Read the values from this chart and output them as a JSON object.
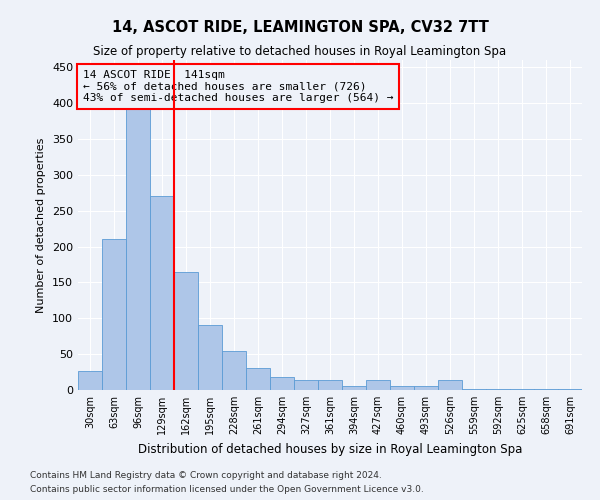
{
  "title": "14, ASCOT RIDE, LEAMINGTON SPA, CV32 7TT",
  "subtitle": "Size of property relative to detached houses in Royal Leamington Spa",
  "xlabel": "Distribution of detached houses by size in Royal Leamington Spa",
  "ylabel": "Number of detached properties",
  "categories": [
    "30sqm",
    "63sqm",
    "96sqm",
    "129sqm",
    "162sqm",
    "195sqm",
    "228sqm",
    "261sqm",
    "294sqm",
    "327sqm",
    "361sqm",
    "394sqm",
    "427sqm",
    "460sqm",
    "493sqm",
    "526sqm",
    "559sqm",
    "592sqm",
    "625sqm",
    "658sqm",
    "691sqm"
  ],
  "values": [
    27,
    210,
    395,
    270,
    165,
    91,
    55,
    30,
    18,
    14,
    14,
    5,
    14,
    5,
    5,
    14,
    2,
    2,
    2,
    2,
    2
  ],
  "bar_color": "#aec6e8",
  "bar_edge_color": "#5b9bd5",
  "vline_x": 3.5,
  "vline_color": "red",
  "annotation_line1": "14 ASCOT RIDE: 141sqm",
  "annotation_line2": "← 56% of detached houses are smaller (726)",
  "annotation_line3": "43% of semi-detached houses are larger (564) →",
  "annotation_box_color": "red",
  "ylim": [
    0,
    460
  ],
  "yticks": [
    0,
    50,
    100,
    150,
    200,
    250,
    300,
    350,
    400,
    450
  ],
  "footnote1": "Contains HM Land Registry data © Crown copyright and database right 2024.",
  "footnote2": "Contains public sector information licensed under the Open Government Licence v3.0.",
  "bg_color": "#eef2f9",
  "grid_color": "#ffffff"
}
